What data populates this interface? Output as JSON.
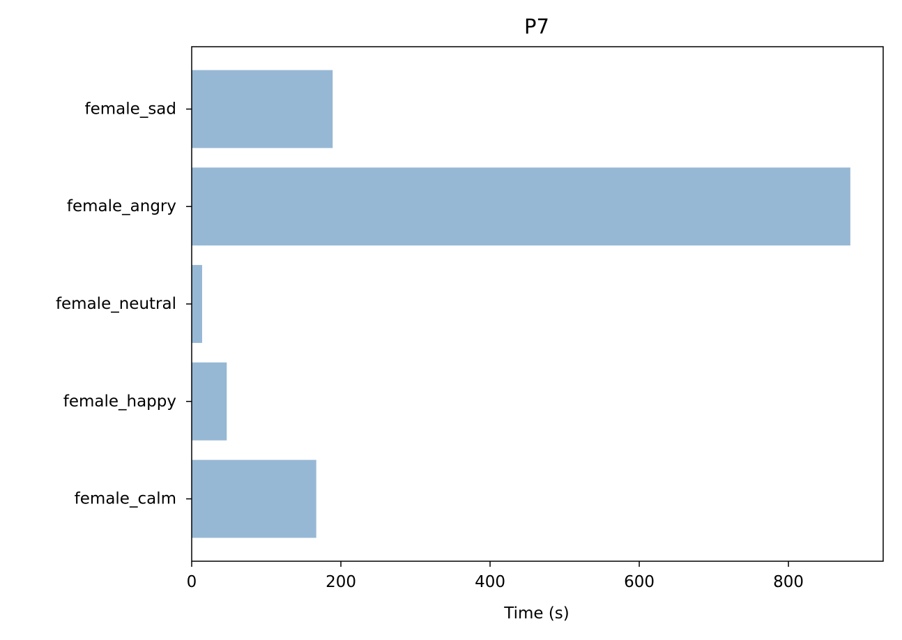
{
  "chart_data": {
    "type": "bar",
    "orientation": "horizontal",
    "title": "P7",
    "xlabel": "Time (s)",
    "ylabel": "",
    "categories": [
      "female_calm",
      "female_happy",
      "female_neutral",
      "female_angry",
      "female_sad"
    ],
    "values": [
      167,
      47,
      14,
      883,
      189
    ],
    "xlim": [
      0,
      927
    ],
    "xticks": [
      0,
      200,
      400,
      600,
      800
    ],
    "bar_color": "#97b8d5",
    "grid": false,
    "legend": "none"
  }
}
